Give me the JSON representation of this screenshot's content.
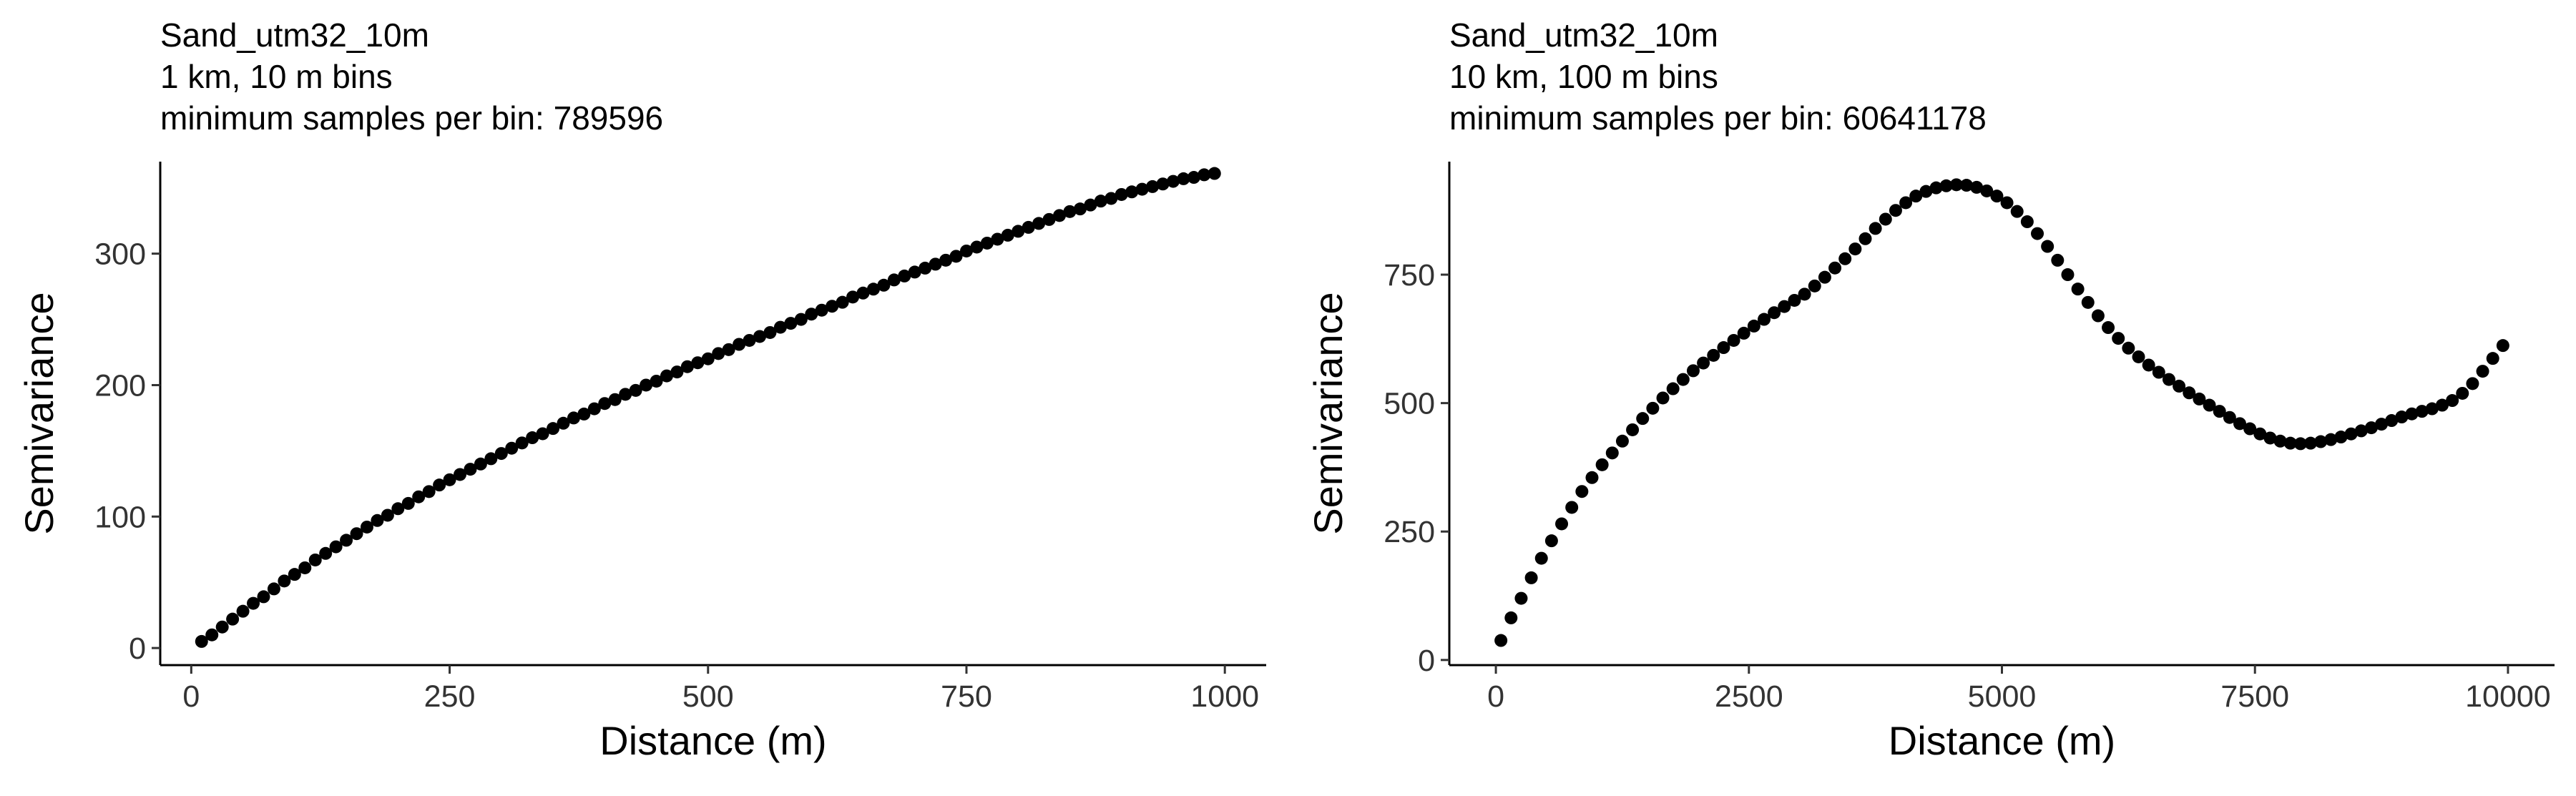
{
  "chart_data": [
    {
      "type": "scatter",
      "title_lines": [
        "Sand_utm32_10m",
        "1 km, 10 m bins",
        "minimum samples per bin: 789596"
      ],
      "xlabel": "Distance (m)",
      "ylabel": "Semivariance",
      "xlim": [
        -30,
        1040
      ],
      "ylim": [
        -13,
        370
      ],
      "xticks": [
        0,
        250,
        500,
        750,
        1000
      ],
      "yticks": [
        0,
        100,
        200,
        300
      ],
      "grid": false,
      "legend": "none",
      "point_color": "#000000",
      "x": [
        10,
        20,
        30,
        40,
        50,
        60,
        70,
        80,
        90,
        100,
        110,
        120,
        130,
        140,
        150,
        160,
        170,
        180,
        190,
        200,
        210,
        220,
        230,
        240,
        250,
        260,
        270,
        280,
        290,
        300,
        310,
        320,
        330,
        340,
        350,
        360,
        370,
        380,
        390,
        400,
        410,
        420,
        430,
        440,
        450,
        460,
        470,
        480,
        490,
        500,
        510,
        520,
        530,
        540,
        550,
        560,
        570,
        580,
        590,
        600,
        610,
        620,
        630,
        640,
        650,
        660,
        670,
        680,
        690,
        700,
        710,
        720,
        730,
        740,
        750,
        760,
        770,
        780,
        790,
        800,
        810,
        820,
        830,
        840,
        850,
        860,
        870,
        880,
        890,
        900,
        910,
        920,
        930,
        940,
        950,
        960,
        970,
        980,
        990
      ],
      "y": [
        5,
        10,
        16,
        22,
        28,
        34,
        39,
        45,
        51,
        56,
        61,
        67,
        72,
        77,
        82,
        87,
        92,
        97,
        101,
        106,
        110,
        115,
        119,
        124,
        128,
        132,
        136,
        140,
        144,
        148,
        152,
        156,
        160,
        163,
        167,
        171,
        175,
        178,
        182,
        186,
        189,
        193,
        196,
        200,
        203,
        207,
        210,
        214,
        217,
        220,
        224,
        227,
        231,
        234,
        237,
        240,
        244,
        247,
        250,
        254,
        257,
        260,
        263,
        267,
        270,
        273,
        276,
        280,
        283,
        286,
        289,
        292,
        295,
        298,
        302,
        305,
        308,
        311,
        314,
        317,
        320,
        323,
        326,
        329,
        332,
        334,
        337,
        340,
        342,
        345,
        347,
        349,
        351,
        353,
        355,
        357,
        358,
        360,
        361
      ]
    },
    {
      "type": "scatter",
      "title_lines": [
        "Sand_utm32_10m",
        "10 km, 100 m bins",
        "minimum samples per bin: 60641178"
      ],
      "xlabel": "Distance (m)",
      "ylabel": "Semivariance",
      "xlim": [
        -460,
        10460
      ],
      "ylim": [
        -10,
        970
      ],
      "xticks": [
        0,
        2500,
        5000,
        7500,
        10000
      ],
      "yticks": [
        0,
        250,
        500,
        750
      ],
      "grid": false,
      "legend": "none",
      "point_color": "#000000",
      "x": [
        50,
        150,
        250,
        350,
        450,
        550,
        650,
        750,
        850,
        950,
        1050,
        1150,
        1250,
        1350,
        1450,
        1550,
        1650,
        1750,
        1850,
        1950,
        2050,
        2150,
        2250,
        2350,
        2450,
        2550,
        2650,
        2750,
        2850,
        2950,
        3050,
        3150,
        3250,
        3350,
        3450,
        3550,
        3650,
        3750,
        3850,
        3950,
        4050,
        4150,
        4250,
        4350,
        4450,
        4550,
        4650,
        4750,
        4850,
        4950,
        5050,
        5150,
        5250,
        5350,
        5450,
        5550,
        5650,
        5750,
        5850,
        5950,
        6050,
        6150,
        6250,
        6350,
        6450,
        6550,
        6650,
        6750,
        6850,
        6950,
        7050,
        7150,
        7250,
        7350,
        7450,
        7550,
        7650,
        7750,
        7850,
        7950,
        8050,
        8150,
        8250,
        8350,
        8450,
        8550,
        8650,
        8750,
        8850,
        8950,
        9050,
        9150,
        9250,
        9350,
        9450,
        9550,
        9650,
        9750,
        9850,
        9950
      ],
      "y": [
        38,
        82,
        120,
        160,
        198,
        232,
        265,
        297,
        328,
        355,
        380,
        403,
        426,
        448,
        470,
        490,
        510,
        528,
        546,
        563,
        578,
        593,
        608,
        622,
        636,
        650,
        663,
        676,
        688,
        700,
        712,
        728,
        745,
        763,
        781,
        800,
        820,
        840,
        858,
        875,
        890,
        903,
        912,
        919,
        923,
        925,
        924,
        920,
        913,
        903,
        890,
        873,
        853,
        830,
        805,
        778,
        750,
        722,
        696,
        670,
        647,
        626,
        607,
        590,
        574,
        560,
        546,
        533,
        520,
        508,
        496,
        484,
        472,
        460,
        450,
        440,
        432,
        426,
        422,
        421,
        422,
        425,
        429,
        434,
        440,
        446,
        452,
        459,
        466,
        473,
        479,
        484,
        489,
        496,
        505,
        519,
        538,
        562,
        587,
        612
      ]
    }
  ]
}
